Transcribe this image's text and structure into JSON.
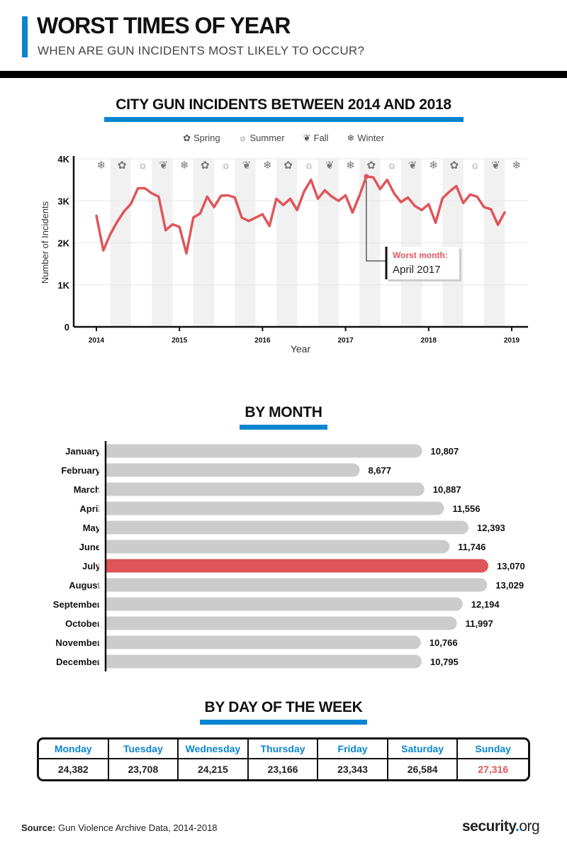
{
  "header": {
    "title": "WORST TIMES OF YEAR",
    "subtitle": "WHEN ARE GUN INCIDENTS MOST LIKELY TO OCCUR?"
  },
  "colors": {
    "accent": "#0a85d1",
    "highlight": "#e0555a",
    "bar": "#cccccc",
    "band": "#f1f1f1"
  },
  "legend": [
    {
      "label": "Spring",
      "icon": "flower-icon"
    },
    {
      "label": "Summer",
      "icon": "sun-icon"
    },
    {
      "label": "Fall",
      "icon": "leaf-icon"
    },
    {
      "label": "Winter",
      "icon": "snowflake-icon"
    }
  ],
  "chart_data": [
    {
      "type": "line",
      "title": "CITY GUN INCIDENTS BETWEEN 2014 AND 2018",
      "xlabel": "Year",
      "ylabel": "Number of Incidents",
      "xlim": [
        2014,
        2019
      ],
      "ylim": [
        0,
        4000
      ],
      "x_ticks": [
        "2014",
        "2015",
        "2016",
        "2017",
        "2018",
        "2019"
      ],
      "y_ticks": [
        "0",
        "1K",
        "2K",
        "3K",
        "4K"
      ],
      "grid": true,
      "season_icons": [
        "winter",
        "spring",
        "summer",
        "fall"
      ],
      "x_start": "2014-01",
      "values": [
        2650,
        1820,
        2200,
        2500,
        2750,
        2930,
        3300,
        3300,
        3180,
        3100,
        2300,
        2440,
        2380,
        1750,
        2600,
        2700,
        3100,
        2850,
        3120,
        3130,
        3080,
        2600,
        2520,
        2600,
        2680,
        2400,
        3050,
        2900,
        3050,
        2780,
        3220,
        3500,
        3050,
        3250,
        3100,
        3000,
        3130,
        2720,
        3120,
        3580,
        3560,
        3280,
        3500,
        3180,
        2970,
        3080,
        2880,
        2780,
        2920,
        2480,
        3060,
        3220,
        3350,
        2950,
        3150,
        3100,
        2850,
        2800,
        2430,
        2730
      ],
      "annotation": {
        "label": "Worst month:",
        "value": "April 2017"
      }
    },
    {
      "type": "bar",
      "title": "BY MONTH",
      "categories": [
        "January",
        "February",
        "March",
        "April",
        "May",
        "June",
        "July",
        "August",
        "September",
        "October",
        "November",
        "December"
      ],
      "values": [
        10807,
        8677,
        10887,
        11556,
        12393,
        11746,
        13070,
        13029,
        12194,
        11997,
        10766,
        10795
      ],
      "labels": [
        "10,807",
        "8,677",
        "10,887",
        "11,556",
        "12,393",
        "11,746",
        "13,070",
        "13,029",
        "12,194",
        "11,997",
        "10,766",
        "10,795"
      ],
      "highlight": "July"
    },
    {
      "type": "table",
      "title": "BY DAY OF THE WEEK",
      "categories": [
        "Monday",
        "Tuesday",
        "Wednesday",
        "Thursday",
        "Friday",
        "Saturday",
        "Sunday"
      ],
      "values": [
        "24,382",
        "23,708",
        "24,215",
        "23,166",
        "23,343",
        "26,584",
        "27,316"
      ],
      "highlight": "Sunday"
    }
  ],
  "footer": {
    "source_label": "Source:",
    "source_text": " Gun Violence Archive Data, 2014-2018",
    "logo_main": "security",
    "logo_dot": ".",
    "logo_tld": "org"
  }
}
